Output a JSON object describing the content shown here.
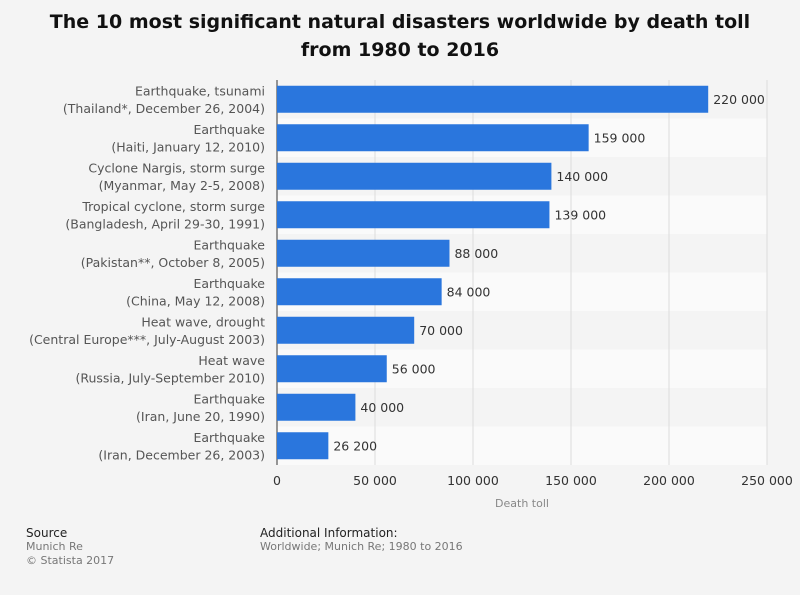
{
  "title_line1": "The 10 most significant natural disasters worldwide by death toll",
  "title_line2": "from 1980 to 2016",
  "chart_data": {
    "type": "bar",
    "orientation": "horizontal",
    "categories": [
      [
        "Earthquake, tsunami",
        "(Thailand*, December 26, 2004)"
      ],
      [
        "Earthquake",
        "(Haiti, January 12, 2010)"
      ],
      [
        "Cyclone Nargis, storm surge",
        "(Myanmar, May 2-5, 2008)"
      ],
      [
        "Tropical cyclone, storm surge",
        "(Bangladesh, April 29-30, 1991)"
      ],
      [
        "Earthquake",
        "(Pakistan**, October 8, 2005)"
      ],
      [
        "Earthquake",
        "(China, May 12, 2008)"
      ],
      [
        "Heat wave, drought",
        "(Central Europe***, July-August 2003)"
      ],
      [
        "Heat wave",
        "(Russia, July-September 2010)"
      ],
      [
        "Earthquake",
        "(Iran, June 20, 1990)"
      ],
      [
        "Earthquake",
        "(Iran, December 26, 2003)"
      ]
    ],
    "values": [
      220000,
      159000,
      140000,
      139000,
      88000,
      84000,
      70000,
      56000,
      40000,
      26200
    ],
    "value_labels": [
      "220 000",
      "159 000",
      "140 000",
      "139 000",
      "88 000",
      "84 000",
      "70 000",
      "56 000",
      "40 000",
      "26 200"
    ],
    "xlabel": "Death toll",
    "ylabel": "",
    "xlim": [
      0,
      250000
    ],
    "xticks": [
      0,
      50000,
      100000,
      150000,
      200000,
      250000
    ],
    "xtick_labels": [
      "0",
      "50 000",
      "100 000",
      "150 000",
      "200 000",
      "250 000"
    ],
    "grid": true,
    "bar_color": "#2a76dd"
  },
  "footer": {
    "source_heading": "Source",
    "source_line1": "Munich Re",
    "source_line2": "© Statista 2017",
    "info_heading": "Additional Information:",
    "info_text": "Worldwide; Munich Re; 1980 to 2016"
  }
}
